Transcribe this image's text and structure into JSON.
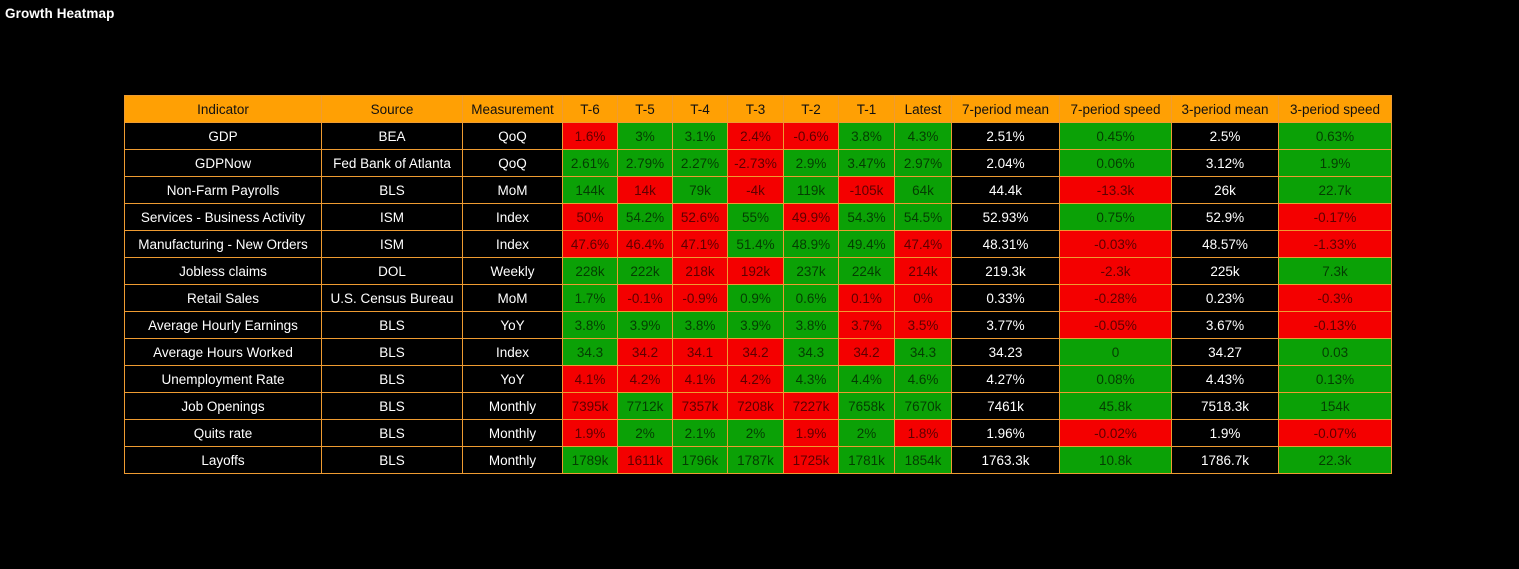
{
  "page_title": "Growth Heatmap",
  "colors": {
    "background": "#000000",
    "header_bg": "#FFA004",
    "header_text": "#111111",
    "grid_border": "#EE9B31",
    "positive_cell": "#0BA106",
    "negative_cell": "#F40000",
    "row_text": "#FFFFFF"
  },
  "chart_data": {
    "type": "heatmap",
    "title": "Growth Heatmap",
    "columns": [
      "Indicator",
      "Source",
      "Measurement",
      "T-6",
      "T-5",
      "T-4",
      "T-3",
      "T-2",
      "T-1",
      "Latest",
      "7-period mean",
      "7-period speed",
      "3-period mean",
      "3-period speed"
    ],
    "rows": [
      {
        "indicator": "GDP",
        "source": "BEA",
        "measurement": "QoQ",
        "periods": [
          {
            "value": "1.6%",
            "tone": "red"
          },
          {
            "value": "3%",
            "tone": "green"
          },
          {
            "value": "3.1%",
            "tone": "green"
          },
          {
            "value": "2.4%",
            "tone": "red"
          },
          {
            "value": "-0.6%",
            "tone": "red"
          },
          {
            "value": "3.8%",
            "tone": "green"
          },
          {
            "value": "4.3%",
            "tone": "green"
          }
        ],
        "mean7": "2.51%",
        "speed7": {
          "value": "0.45%",
          "tone": "green"
        },
        "mean3": "2.5%",
        "speed3": {
          "value": "0.63%",
          "tone": "green"
        }
      },
      {
        "indicator": "GDPNow",
        "source": "Fed Bank of Atlanta",
        "measurement": "QoQ",
        "periods": [
          {
            "value": "2.61%",
            "tone": "green"
          },
          {
            "value": "2.79%",
            "tone": "green"
          },
          {
            "value": "2.27%",
            "tone": "green"
          },
          {
            "value": "-2.73%",
            "tone": "red"
          },
          {
            "value": "2.9%",
            "tone": "green"
          },
          {
            "value": "3.47%",
            "tone": "green"
          },
          {
            "value": "2.97%",
            "tone": "green"
          }
        ],
        "mean7": "2.04%",
        "speed7": {
          "value": "0.06%",
          "tone": "green"
        },
        "mean3": "3.12%",
        "speed3": {
          "value": "1.9%",
          "tone": "green"
        }
      },
      {
        "indicator": "Non-Farm Payrolls",
        "source": "BLS",
        "measurement": "MoM",
        "periods": [
          {
            "value": "144k",
            "tone": "green"
          },
          {
            "value": "14k",
            "tone": "red"
          },
          {
            "value": "79k",
            "tone": "green"
          },
          {
            "value": "-4k",
            "tone": "red"
          },
          {
            "value": "119k",
            "tone": "green"
          },
          {
            "value": "-105k",
            "tone": "red"
          },
          {
            "value": "64k",
            "tone": "green"
          }
        ],
        "mean7": "44.4k",
        "speed7": {
          "value": "-13.3k",
          "tone": "red"
        },
        "mean3": "26k",
        "speed3": {
          "value": "22.7k",
          "tone": "green"
        }
      },
      {
        "indicator": "Services - Business Activity",
        "source": "ISM",
        "measurement": "Index",
        "periods": [
          {
            "value": "50%",
            "tone": "red"
          },
          {
            "value": "54.2%",
            "tone": "green"
          },
          {
            "value": "52.6%",
            "tone": "red"
          },
          {
            "value": "55%",
            "tone": "green"
          },
          {
            "value": "49.9%",
            "tone": "red"
          },
          {
            "value": "54.3%",
            "tone": "green"
          },
          {
            "value": "54.5%",
            "tone": "green"
          }
        ],
        "mean7": "52.93%",
        "speed7": {
          "value": "0.75%",
          "tone": "green"
        },
        "mean3": "52.9%",
        "speed3": {
          "value": "-0.17%",
          "tone": "red"
        }
      },
      {
        "indicator": "Manufacturing - New Orders",
        "source": "ISM",
        "measurement": "Index",
        "periods": [
          {
            "value": "47.6%",
            "tone": "red"
          },
          {
            "value": "46.4%",
            "tone": "red"
          },
          {
            "value": "47.1%",
            "tone": "red"
          },
          {
            "value": "51.4%",
            "tone": "green"
          },
          {
            "value": "48.9%",
            "tone": "green"
          },
          {
            "value": "49.4%",
            "tone": "green"
          },
          {
            "value": "47.4%",
            "tone": "red"
          }
        ],
        "mean7": "48.31%",
        "speed7": {
          "value": "-0.03%",
          "tone": "red"
        },
        "mean3": "48.57%",
        "speed3": {
          "value": "-1.33%",
          "tone": "red"
        }
      },
      {
        "indicator": "Jobless claims",
        "source": "DOL",
        "measurement": "Weekly",
        "periods": [
          {
            "value": "228k",
            "tone": "green"
          },
          {
            "value": "222k",
            "tone": "green"
          },
          {
            "value": "218k",
            "tone": "red"
          },
          {
            "value": "192k",
            "tone": "red"
          },
          {
            "value": "237k",
            "tone": "green"
          },
          {
            "value": "224k",
            "tone": "green"
          },
          {
            "value": "214k",
            "tone": "red"
          }
        ],
        "mean7": "219.3k",
        "speed7": {
          "value": "-2.3k",
          "tone": "red"
        },
        "mean3": "225k",
        "speed3": {
          "value": "7.3k",
          "tone": "green"
        }
      },
      {
        "indicator": "Retail Sales",
        "source": "U.S. Census Bureau",
        "measurement": "MoM",
        "periods": [
          {
            "value": "1.7%",
            "tone": "green"
          },
          {
            "value": "-0.1%",
            "tone": "red"
          },
          {
            "value": "-0.9%",
            "tone": "red"
          },
          {
            "value": "0.9%",
            "tone": "green"
          },
          {
            "value": "0.6%",
            "tone": "green"
          },
          {
            "value": "0.1%",
            "tone": "red"
          },
          {
            "value": "0%",
            "tone": "red"
          }
        ],
        "mean7": "0.33%",
        "speed7": {
          "value": "-0.28%",
          "tone": "red"
        },
        "mean3": "0.23%",
        "speed3": {
          "value": "-0.3%",
          "tone": "red"
        }
      },
      {
        "indicator": "Average Hourly Earnings",
        "source": "BLS",
        "measurement": "YoY",
        "periods": [
          {
            "value": "3.8%",
            "tone": "green"
          },
          {
            "value": "3.9%",
            "tone": "green"
          },
          {
            "value": "3.8%",
            "tone": "green"
          },
          {
            "value": "3.9%",
            "tone": "green"
          },
          {
            "value": "3.8%",
            "tone": "green"
          },
          {
            "value": "3.7%",
            "tone": "red"
          },
          {
            "value": "3.5%",
            "tone": "red"
          }
        ],
        "mean7": "3.77%",
        "speed7": {
          "value": "-0.05%",
          "tone": "red"
        },
        "mean3": "3.67%",
        "speed3": {
          "value": "-0.13%",
          "tone": "red"
        }
      },
      {
        "indicator": "Average Hours Worked",
        "source": "BLS",
        "measurement": "Index",
        "periods": [
          {
            "value": "34.3",
            "tone": "green"
          },
          {
            "value": "34.2",
            "tone": "red"
          },
          {
            "value": "34.1",
            "tone": "red"
          },
          {
            "value": "34.2",
            "tone": "red"
          },
          {
            "value": "34.3",
            "tone": "green"
          },
          {
            "value": "34.2",
            "tone": "red"
          },
          {
            "value": "34.3",
            "tone": "green"
          }
        ],
        "mean7": "34.23",
        "speed7": {
          "value": "0",
          "tone": "green"
        },
        "mean3": "34.27",
        "speed3": {
          "value": "0.03",
          "tone": "green"
        }
      },
      {
        "indicator": "Unemployment Rate",
        "source": "BLS",
        "measurement": "YoY",
        "periods": [
          {
            "value": "4.1%",
            "tone": "red"
          },
          {
            "value": "4.2%",
            "tone": "red"
          },
          {
            "value": "4.1%",
            "tone": "red"
          },
          {
            "value": "4.2%",
            "tone": "red"
          },
          {
            "value": "4.3%",
            "tone": "green"
          },
          {
            "value": "4.4%",
            "tone": "green"
          },
          {
            "value": "4.6%",
            "tone": "green"
          }
        ],
        "mean7": "4.27%",
        "speed7": {
          "value": "0.08%",
          "tone": "green"
        },
        "mean3": "4.43%",
        "speed3": {
          "value": "0.13%",
          "tone": "green"
        }
      },
      {
        "indicator": "Job Openings",
        "source": "BLS",
        "measurement": "Monthly",
        "periods": [
          {
            "value": "7395k",
            "tone": "red"
          },
          {
            "value": "7712k",
            "tone": "green"
          },
          {
            "value": "7357k",
            "tone": "red"
          },
          {
            "value": "7208k",
            "tone": "red"
          },
          {
            "value": "7227k",
            "tone": "red"
          },
          {
            "value": "7658k",
            "tone": "green"
          },
          {
            "value": "7670k",
            "tone": "green"
          }
        ],
        "mean7": "7461k",
        "speed7": {
          "value": "45.8k",
          "tone": "green"
        },
        "mean3": "7518.3k",
        "speed3": {
          "value": "154k",
          "tone": "green"
        }
      },
      {
        "indicator": "Quits rate",
        "source": "BLS",
        "measurement": "Monthly",
        "periods": [
          {
            "value": "1.9%",
            "tone": "red"
          },
          {
            "value": "2%",
            "tone": "green"
          },
          {
            "value": "2.1%",
            "tone": "green"
          },
          {
            "value": "2%",
            "tone": "green"
          },
          {
            "value": "1.9%",
            "tone": "red"
          },
          {
            "value": "2%",
            "tone": "green"
          },
          {
            "value": "1.8%",
            "tone": "red"
          }
        ],
        "mean7": "1.96%",
        "speed7": {
          "value": "-0.02%",
          "tone": "red"
        },
        "mean3": "1.9%",
        "speed3": {
          "value": "-0.07%",
          "tone": "red"
        }
      },
      {
        "indicator": "Layoffs",
        "source": "BLS",
        "measurement": "Monthly",
        "periods": [
          {
            "value": "1789k",
            "tone": "green"
          },
          {
            "value": "1611k",
            "tone": "red"
          },
          {
            "value": "1796k",
            "tone": "green"
          },
          {
            "value": "1787k",
            "tone": "green"
          },
          {
            "value": "1725k",
            "tone": "red"
          },
          {
            "value": "1781k",
            "tone": "green"
          },
          {
            "value": "1854k",
            "tone": "green"
          }
        ],
        "mean7": "1763.3k",
        "speed7": {
          "value": "10.8k",
          "tone": "green"
        },
        "mean3": "1786.7k",
        "speed3": {
          "value": "22.3k",
          "tone": "green"
        }
      }
    ]
  }
}
